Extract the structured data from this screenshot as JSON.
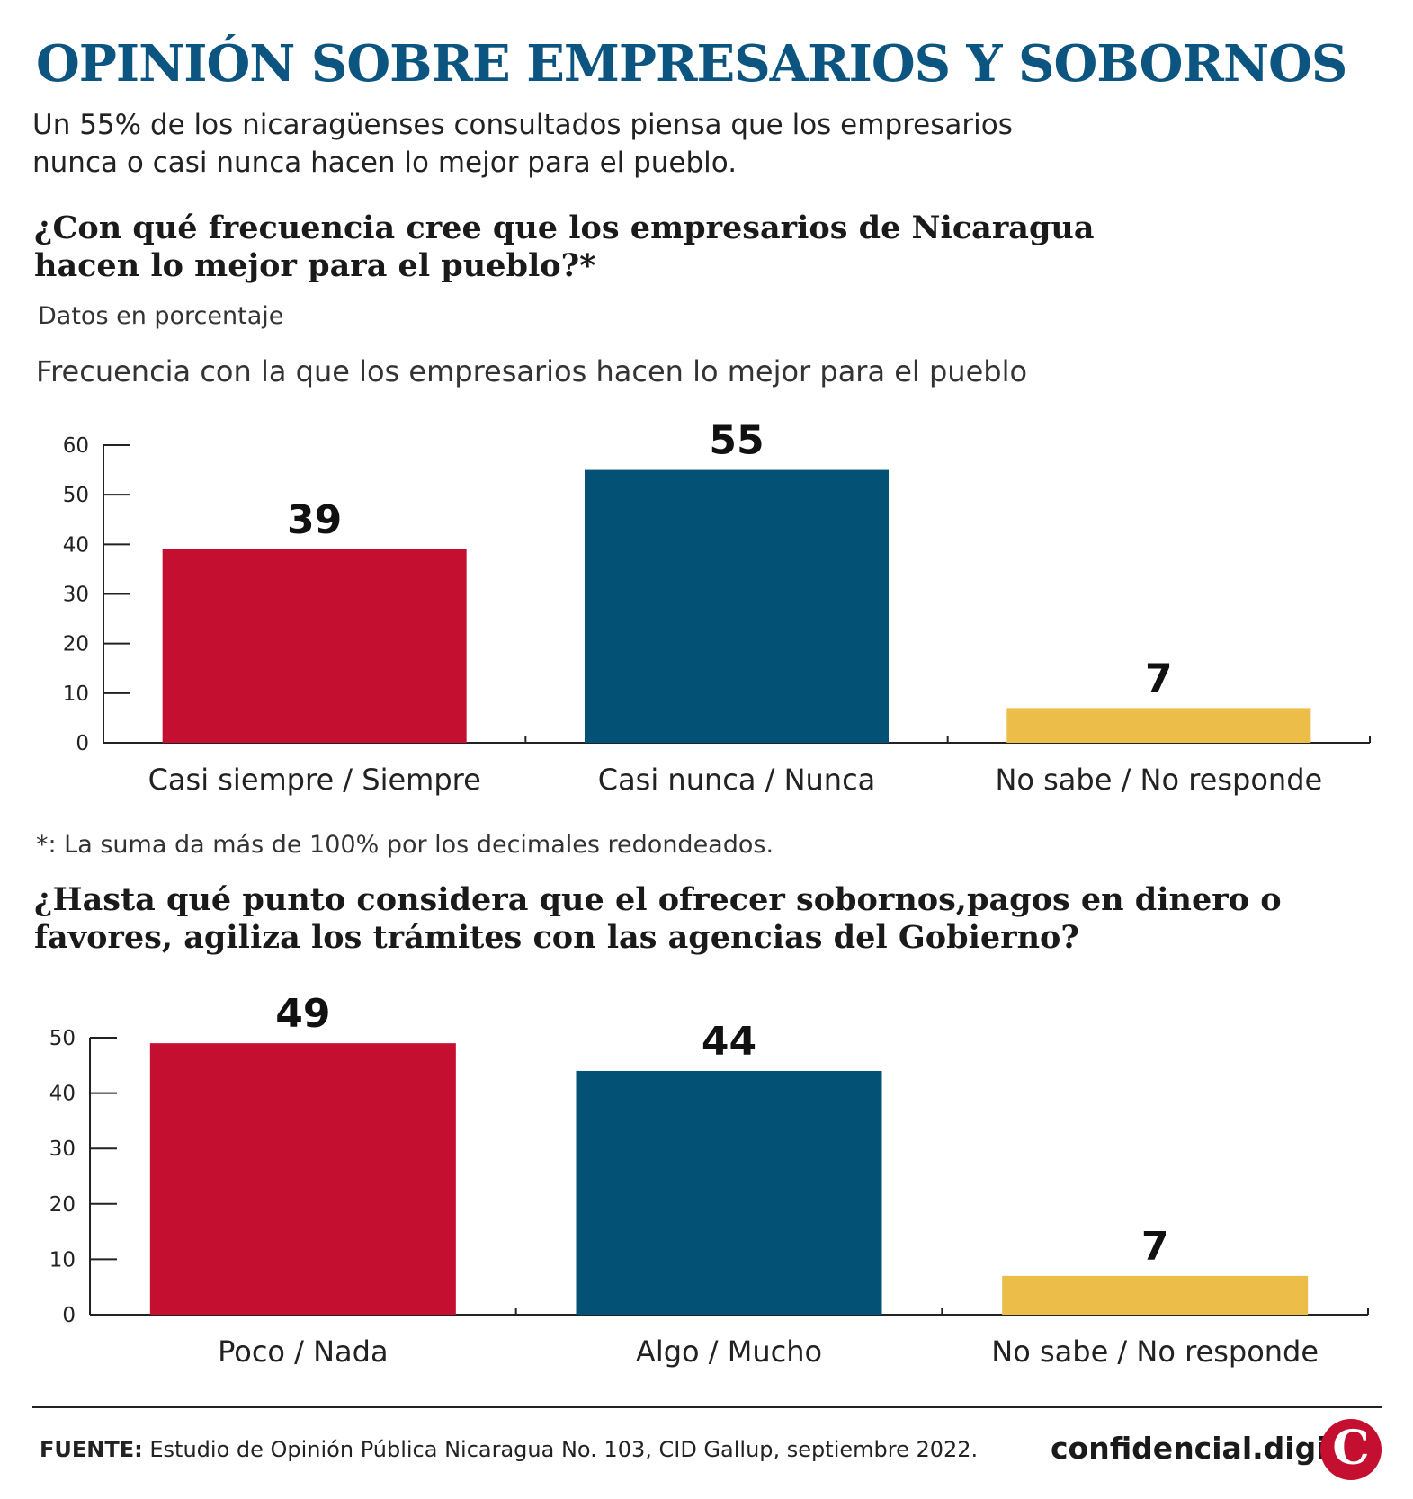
{
  "title": "OPINIÓN SOBRE EMPRESARIOS Y SOBORNOS",
  "subtitle": "Un 55% de los nicaragüenses consultados piensa que los empresarios nunca o casi nunca hacen lo mejor para el pueblo.",
  "question1": "¿Con qué frecuencia cree que los empresarios de Nicaragua hacen lo mejor para el pueblo?*",
  "units_note": "Datos en porcentaje",
  "chart1_title": "Frecuencia con la que los empresarios hacen lo mejor para el pueblo",
  "footnote": "*: La suma da más de 100% por los decimales redondeados.",
  "question2": "¿Hasta qué punto considera que el ofrecer sobornos,pagos en dinero o favores, agiliza los trámites con las agencias del Gobierno?",
  "source_label": "FUENTE:",
  "source_text": "Estudio de Opinión Pública Nicaragua No. 103, CID Gallup, septiembre 2022.",
  "logo_text": "confidencial.digital",
  "logo_glyph": "C",
  "colors": {
    "red": "#c50f31",
    "blue": "#035276",
    "yellow": "#ecbd49",
    "title": "#0b5580"
  },
  "chart_data": [
    {
      "type": "bar",
      "title": "Frecuencia con la que los empresarios hacen lo mejor para el pueblo",
      "categories": [
        "Casi siempre / Siempre",
        "Casi nunca / Nunca",
        "No sabe / No responde"
      ],
      "values": [
        39,
        55,
        7
      ],
      "bar_colors": [
        "#c50f31",
        "#035276",
        "#ecbd49"
      ],
      "ylim": [
        0,
        60
      ],
      "yticks": [
        0,
        10,
        20,
        30,
        40,
        50,
        60
      ]
    },
    {
      "type": "bar",
      "categories": [
        "Poco / Nada",
        "Algo / Mucho",
        "No sabe / No responde"
      ],
      "values": [
        49,
        44,
        7
      ],
      "bar_colors": [
        "#c50f31",
        "#035276",
        "#ecbd49"
      ],
      "ylim": [
        0,
        50
      ],
      "yticks": [
        0,
        10,
        20,
        30,
        40,
        50
      ]
    }
  ]
}
